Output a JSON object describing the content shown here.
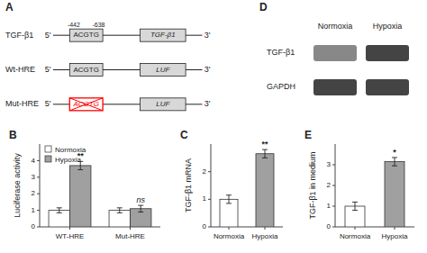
{
  "chart_data": [
    {
      "type": "diagram",
      "title": "A",
      "annotations": [
        "5'",
        "3'"
      ],
      "rows": [
        {
          "label": "TGF-β1",
          "box1_text": "ACGTG",
          "box2_text": "TGF-β1",
          "annotations": [
            "-442",
            "-638"
          ]
        },
        {
          "label": "Wt-HRE",
          "box1_text": "ACGTG",
          "box2_text": "LUF"
        },
        {
          "label": "Mut-HRE",
          "box1_text": "ACGTG",
          "box2_text": "LUF",
          "color": "red"
        }
      ]
    },
    {
      "type": "bar",
      "title": "B",
      "ylabel": "Luciferase activity",
      "categories": [
        "WT-HRE",
        "Mut-HRE"
      ],
      "series": [
        {
          "name": "Normoxia",
          "color": "white",
          "values": [
            1.0,
            1.0
          ],
          "errors": [
            0.15,
            0.15
          ]
        },
        {
          "name": "Hypoxia",
          "color": "#a0a0a0",
          "values": [
            3.7,
            1.1
          ],
          "errors": [
            0.25,
            0.2
          ]
        }
      ],
      "ylim": [
        0,
        5.0
      ],
      "yticks": [
        0,
        1,
        2,
        3,
        4
      ],
      "annotations": [
        "**",
        "ns"
      ],
      "legend": "upper left"
    },
    {
      "type": "bar",
      "title": "C",
      "ylabel": "TGF-β1 mRNA",
      "categories": [
        "Normoxia",
        "Hypoxia"
      ],
      "values": [
        1.0,
        2.65
      ],
      "errors": [
        0.15,
        0.15
      ],
      "colors": [
        "white",
        "#a0a0a0"
      ],
      "ylim": [
        0,
        3.0
      ],
      "yticks": [
        0,
        1,
        2
      ],
      "annotations": [
        "**"
      ]
    },
    {
      "type": "blot",
      "title": "D",
      "categories": [
        "Normoxia",
        "Hypoxia"
      ],
      "series": [
        {
          "name": "TGF-β1",
          "colors": [
            "#888888",
            "#444444"
          ]
        },
        {
          "name": "GAPDH",
          "colors": [
            "#444444",
            "#444444"
          ]
        }
      ]
    },
    {
      "type": "bar",
      "title": "E",
      "ylabel": "TGF-β1 in medium",
      "categories": [
        "Normoxia",
        "Hypoxia"
      ],
      "values": [
        1.0,
        3.15
      ],
      "errors": [
        0.2,
        0.2
      ],
      "colors": [
        "white",
        "#a0a0a0"
      ],
      "ylim": [
        0,
        4.0
      ],
      "yticks": [
        0,
        1,
        2,
        3
      ],
      "annotations": [
        "*"
      ]
    }
  ]
}
